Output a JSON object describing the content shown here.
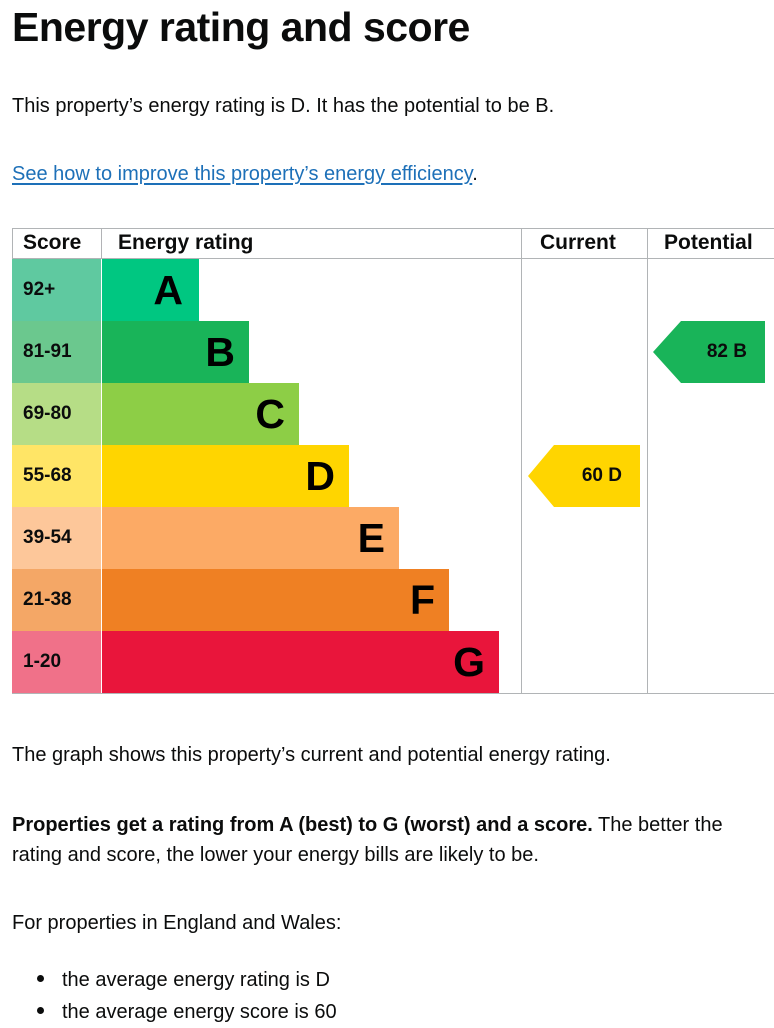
{
  "page": {
    "title": "Energy rating and score",
    "intro": "This property’s energy rating is D. It has the potential to be B.",
    "link_text": "See how to improve this property’s energy efficiency",
    "link_suffix": ".",
    "graph_description": "The graph shows this property’s current and potential energy rating.",
    "ratings_bold": "Properties get a rating from A (best) to G (worst) and a score.",
    "ratings_rest": " The better the rating and score, the lower your energy bills are likely to be.",
    "england_wales": "For properties in England and Wales:",
    "averages": [
      "the average energy rating is D",
      "the average energy score is 60"
    ]
  },
  "chart_headers": {
    "score": "Score",
    "energy_rating": "Energy rating",
    "current": "Current",
    "potential": "Potential"
  },
  "bands": [
    {
      "score": "92+",
      "letter": "A",
      "color": "#00c781",
      "score_bg": "#5fc9a0"
    },
    {
      "score": "81-91",
      "letter": "B",
      "color": "#19b459",
      "score_bg": "#6bc88e"
    },
    {
      "score": "69-80",
      "letter": "C",
      "color": "#8dce46",
      "score_bg": "#b6dd86"
    },
    {
      "score": "55-68",
      "letter": "D",
      "color": "#ffd500",
      "score_bg": "#ffe566"
    },
    {
      "score": "39-54",
      "letter": "E",
      "color": "#fcaa65",
      "score_bg": "#fdc79a"
    },
    {
      "score": "21-38",
      "letter": "F",
      "color": "#ef8023",
      "score_bg": "#f4a766"
    },
    {
      "score": "1-20",
      "letter": "G",
      "color": "#e9153b",
      "score_bg": "#f07189"
    }
  ],
  "current": {
    "score": "60",
    "letter": "D",
    "label": "60 D",
    "color": "#ffd500"
  },
  "potential": {
    "score": "82",
    "letter": "B",
    "label": "82 B",
    "color": "#19b459"
  }
}
